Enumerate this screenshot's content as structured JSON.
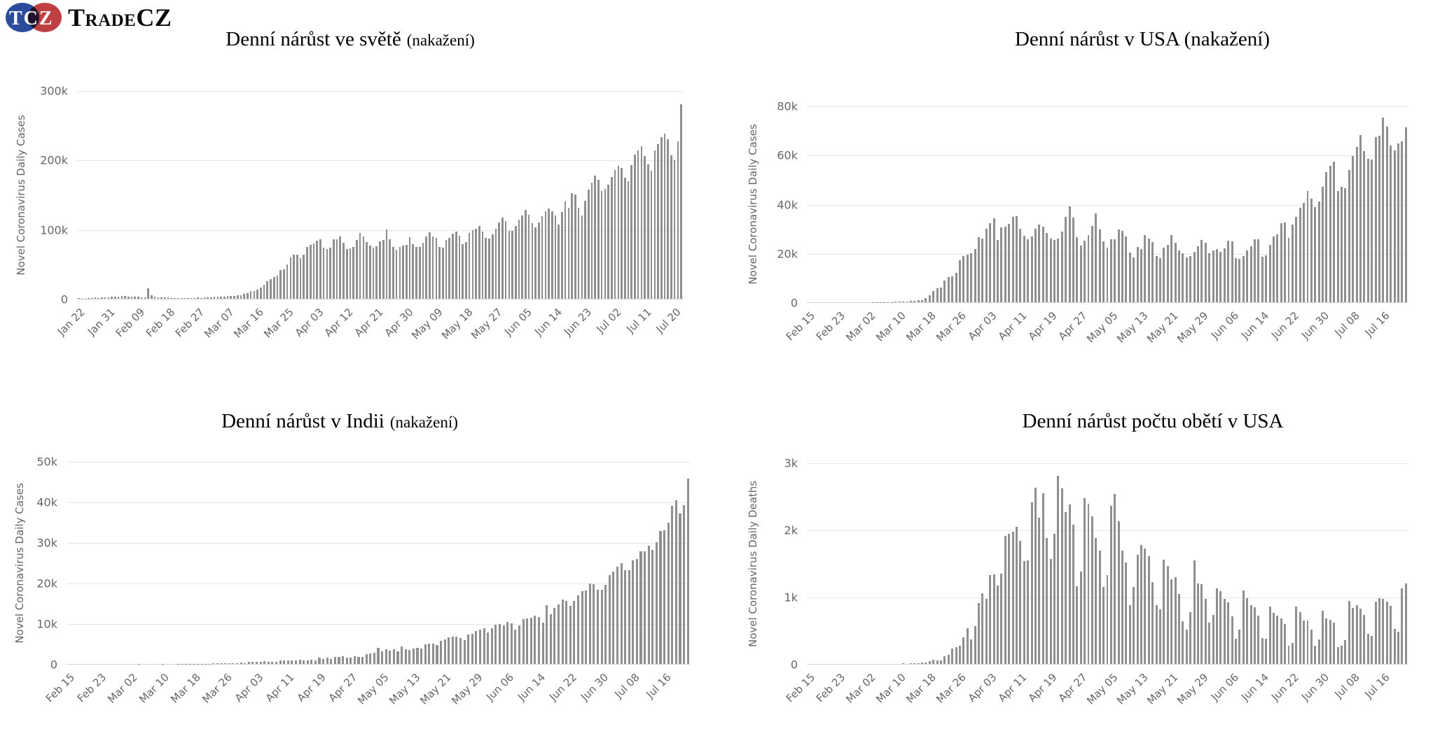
{
  "logo": {
    "badge": "TCZ",
    "name": "TradeCZ",
    "badge_blue": "#2b4b9b",
    "badge_red": "#bf4043"
  },
  "style": {
    "bar_color": "#8f8f8f",
    "grid_color": "#e6e6e6",
    "axis_line_color": "#ccd6eb",
    "tick_text_color": "#666666"
  },
  "chart_data": [
    {
      "name": "world-cases",
      "type": "bar",
      "title": "Denní nárůst ve světě",
      "suffix": "(nakažení)",
      "ylabel": "Novel Coronavirus Daily Cases",
      "unit": "thousands",
      "ymax": 300,
      "ylim": [
        0,
        300
      ],
      "grid": true,
      "yticks": [
        "0",
        "100k",
        "200k",
        "300k"
      ],
      "xtick_every": 9,
      "xticks": [
        "Jan 22",
        "Jan 31",
        "Feb 09",
        "Feb 18",
        "Feb 27",
        "Mar 07",
        "Mar 16",
        "Mar 25",
        "Apr 03",
        "Apr 12",
        "Apr 21",
        "Apr 30",
        "May 09",
        "May 18",
        "May 27",
        "Jun 05",
        "Jun 14",
        "Jun 23",
        "Jul 02",
        "Jul 11",
        "Jul 20"
      ],
      "values": [
        0.6,
        0.3,
        0.5,
        0.7,
        0.8,
        1.8,
        1.5,
        1.8,
        2.0,
        2.1,
        2.6,
        2.8,
        3.2,
        3.9,
        3.7,
        3.2,
        3.4,
        2.7,
        3.0,
        2.5,
        2.1,
        14.9,
        5.1,
        2.7,
        2.2,
        2.1,
        1.9,
        1.8,
        0.6,
        0.9,
        1.0,
        1.0,
        0.7,
        0.8,
        1.0,
        1.4,
        1.8,
        1.4,
        1.9,
        1.7,
        2.1,
        2.7,
        2.7,
        2.8,
        3.0,
        4.0,
        4.1,
        4.3,
        4.6,
        5.5,
        7.5,
        8.1,
        11.0,
        11.3,
        13.4,
        16.4,
        19.8,
        25.0,
        28.7,
        30.9,
        33.3,
        40.8,
        42.7,
        49.4,
        59.6,
        63.3,
        63.0,
        58.1,
        63.1,
        74.7,
        77.9,
        79.7,
        83.2,
        86.0,
        74.0,
        71.8,
        74.0,
        85.7,
        86.0,
        89.7,
        80.3,
        71.6,
        72.1,
        74.5,
        84.8,
        95.0,
        89.4,
        81.6,
        76.5,
        73.9,
        75.3,
        83.0,
        84.2,
        100.1,
        85.9,
        74.9,
        70.0,
        74.7,
        76.9,
        78.0,
        88.3,
        78.9,
        74.1,
        74.2,
        80.5,
        90.0,
        95.8,
        89.7,
        87.7,
        74.7,
        73.9,
        84.4,
        88.1,
        93.4,
        96.3,
        90.4,
        78.9,
        81.5,
        95.0,
        98.4,
        100.3,
        104.5,
        96.5,
        88.1,
        86.9,
        92.8,
        100.9,
        110.1,
        117.0,
        111.7,
        97.6,
        97.8,
        104.6,
        114.0,
        119.9,
        128.2,
        120.6,
        108.9,
        102.4,
        110.0,
        118.6,
        126.0,
        129.8,
        125.7,
        119.4,
        106.9,
        124.9,
        140.1,
        131.2,
        152.3,
        150.4,
        130.9,
        119.4,
        141.0,
        156.9,
        167.0,
        177.3,
        171.4,
        154.8,
        158.5,
        163.9,
        175.0,
        185.0,
        190.8,
        188.5,
        174.0,
        169.4,
        192.4,
        207.1,
        213.8,
        219.4,
        205.3,
        193.0,
        184.6,
        213.4,
        222.1,
        232.4,
        237.2,
        229.6,
        205.9,
        199.5,
        226.8,
        280.2
      ]
    },
    {
      "name": "usa-cases",
      "type": "bar",
      "title": "Denní nárůst v USA (nakažení)",
      "suffix": "",
      "ylabel": "Novel Coronavirus Daily Cases",
      "unit": "thousands",
      "ymax": 80,
      "ylim": [
        0,
        80
      ],
      "grid": true,
      "yticks": [
        "0",
        "20k",
        "40k",
        "60k",
        "80k"
      ],
      "xtick_every": 8,
      "xticks": [
        "Feb 15",
        "Feb 23",
        "Mar 02",
        "Mar 10",
        "Mar 18",
        "Mar 26",
        "Apr 03",
        "Apr 11",
        "Apr 19",
        "Apr 27",
        "May 05",
        "May 13",
        "May 21",
        "May 29",
        "Jun 06",
        "Jun 14",
        "Jun 22",
        "Jun 30",
        "Jul 08",
        "Jul 16"
      ],
      "values": [
        0,
        0,
        0,
        0,
        0,
        0,
        0,
        0,
        0,
        0.01,
        0.02,
        0.01,
        0.01,
        0.01,
        0.01,
        0.02,
        0.02,
        0.03,
        0.08,
        0.07,
        0.1,
        0.12,
        0.12,
        0.2,
        0.3,
        0.4,
        0.4,
        0.6,
        0.7,
        0.8,
        0.9,
        1.7,
        2.8,
        4.5,
        5.6,
        6.0,
        8.8,
        10.2,
        10.4,
        12.0,
        17.0,
        18.7,
        19.5,
        19.9,
        21.7,
        26.4,
        25.9,
        29.9,
        32.1,
        34.2,
        25.3,
        30.6,
        30.8,
        31.9,
        34.8,
        35.1,
        29.9,
        27.1,
        25.7,
        26.9,
        30.0,
        31.5,
        30.8,
        28.1,
        26.0,
        25.3,
        25.8,
        28.7,
        34.8,
        39.1,
        34.5,
        26.5,
        23.0,
        25.0,
        27.3,
        31.0,
        36.1,
        29.7,
        24.9,
        22.3,
        25.5,
        25.5,
        29.5,
        29.0,
        26.7,
        20.1,
        18.1,
        22.4,
        21.5,
        27.3,
        25.9,
        24.5,
        18.9,
        18.0,
        22.2,
        23.3,
        27.3,
        24.1,
        21.0,
        19.8,
        18.3,
        18.9,
        20.5,
        22.8,
        25.3,
        24.1,
        20.0,
        21.0,
        21.5,
        20.5,
        21.9,
        25.2,
        24.8,
        18.0,
        17.6,
        18.8,
        21.1,
        22.8,
        25.6,
        25.5,
        18.6,
        19.0,
        23.3,
        26.9,
        27.6,
        32.2,
        32.4,
        26.1,
        31.7,
        34.7,
        38.4,
        40.5,
        45.3,
        42.1,
        38.6,
        41.1,
        47.0,
        52.9,
        55.4,
        57.2,
        45.3,
        47.1,
        46.3,
        53.7,
        59.6,
        63.2,
        68.0,
        61.4,
        58.3,
        58.1,
        67.3,
        67.8,
        75.1,
        71.6,
        63.7,
        61.8,
        64.5,
        65.6,
        71.2
      ]
    },
    {
      "name": "india-cases",
      "type": "bar",
      "title": "Denní nárůst v Indii",
      "suffix": "(nakažení)",
      "ylabel": "Novel Coronavirus Daily Cases",
      "unit": "thousands",
      "ymax": 50,
      "ylim": [
        0,
        50
      ],
      "grid": true,
      "yticks": [
        "0",
        "10k",
        "20k",
        "30k",
        "40k",
        "50k"
      ],
      "xtick_every": 8,
      "xticks": [
        "Feb 15",
        "Feb 23",
        "Mar 02",
        "Mar 10",
        "Mar 18",
        "Mar 26",
        "Apr 03",
        "Apr 11",
        "Apr 19",
        "Apr 27",
        "May 05",
        "May 13",
        "May 21",
        "May 29",
        "Jun 06",
        "Jun 14",
        "Jun 22",
        "Jun 30",
        "Jul 08",
        "Jul 16"
      ],
      "values": [
        0,
        0,
        0,
        0,
        0,
        0,
        0,
        0,
        0,
        0,
        0,
        0,
        0,
        0,
        0,
        0,
        0,
        0.01,
        0.02,
        0.01,
        0.01,
        0.01,
        0.01,
        0.01,
        0.02,
        0.01,
        0.01,
        0.01,
        0.02,
        0.03,
        0.03,
        0.02,
        0.04,
        0.05,
        0.06,
        0.07,
        0.08,
        0.1,
        0.1,
        0.09,
        0.12,
        0.15,
        0.18,
        0.23,
        0.27,
        0.24,
        0.44,
        0.55,
        0.48,
        0.58,
        0.7,
        0.49,
        0.57,
        0.55,
        0.85,
        0.87,
        0.85,
        0.92,
        0.91,
        1.12,
        0.89,
        0.94,
        1.06,
        0.92,
        1.58,
        1.24,
        1.54,
        1.29,
        1.67,
        1.75,
        1.84,
        1.61,
        1.56,
        1.9,
        1.72,
        1.8,
        2.39,
        2.56,
        2.81,
        3.93,
        3.03,
        3.6,
        3.34,
        3.56,
        3.18,
        4.35,
        3.6,
        3.52,
        3.73,
        3.94,
        3.84,
        4.86,
        4.99,
        5.05,
        4.63,
        5.72,
        6.02,
        6.54,
        6.66,
        6.76,
        6.41,
        5.91,
        7.25,
        7.47,
        8.14,
        8.38,
        8.73,
        7.76,
        8.82,
        9.63,
        9.85,
        9.47,
        10.41,
        9.97,
        8.44,
        9.5,
        11.12,
        11.13,
        11.3,
        11.98,
        11.5,
        10.22,
        14.52,
        12.28,
        13.83,
        14.74,
        15.92,
        15.55,
        14.28,
        15.6,
        16.87,
        17.87,
        18.19,
        19.9,
        19.62,
        18.36,
        18.26,
        19.43,
        21.95,
        22.71,
        24.02,
        24.85,
        23.13,
        23.14,
        25.57,
        25.79,
        27.75,
        27.76,
        29.11,
        28.18,
        29.92,
        32.68,
        32.97,
        34.82,
        38.9,
        40.27,
        37.15,
        39.17,
        45.72
      ]
    },
    {
      "name": "usa-deaths",
      "type": "bar",
      "title": "Denní nárůst počtu obětí v USA",
      "suffix": "",
      "ylabel": "Novel Coronavirus Daily Deaths",
      "unit": "thousands",
      "ymax": 3,
      "ylim": [
        0,
        3
      ],
      "grid": true,
      "yticks": [
        "0",
        "1k",
        "2k",
        "3k"
      ],
      "xtick_every": 8,
      "xticks": [
        "Feb 15",
        "Feb 23",
        "Mar 02",
        "Mar 10",
        "Mar 18",
        "Mar 26",
        "Apr 03",
        "Apr 11",
        "Apr 19",
        "Apr 27",
        "May 05",
        "May 13",
        "May 21",
        "May 29",
        "Jun 06",
        "Jun 14",
        "Jun 22",
        "Jun 30",
        "Jul 08",
        "Jul 16"
      ],
      "values": [
        0,
        0,
        0,
        0,
        0,
        0,
        0,
        0,
        0,
        0,
        0,
        0,
        0,
        0,
        0,
        0,
        0,
        0,
        0,
        0,
        0,
        0,
        0,
        0,
        0,
        0.01,
        0,
        0.01,
        0.01,
        0.01,
        0.02,
        0.02,
        0.04,
        0.06,
        0.05,
        0.05,
        0.11,
        0.14,
        0.23,
        0.25,
        0.27,
        0.4,
        0.53,
        0.36,
        0.56,
        0.91,
        1.05,
        0.97,
        1.32,
        1.33,
        1.17,
        1.34,
        1.91,
        1.94,
        1.97,
        2.04,
        1.83,
        1.53,
        1.54,
        2.41,
        2.62,
        2.18,
        2.54,
        1.87,
        1.56,
        1.94,
        2.8,
        2.61,
        2.26,
        2.38,
        2.07,
        1.16,
        1.38,
        2.47,
        2.39,
        2.2,
        1.88,
        1.69,
        1.15,
        1.32,
        2.35,
        2.53,
        2.13,
        1.69,
        1.51,
        0.87,
        1.15,
        1.63,
        1.77,
        1.72,
        1.6,
        1.22,
        0.87,
        0.81,
        1.55,
        1.46,
        1.26,
        1.29,
        1.04,
        0.64,
        0.51,
        0.77,
        1.54,
        1.2,
        1.19,
        0.97,
        0.61,
        0.73,
        1.13,
        1.08,
        0.97,
        0.92,
        0.71,
        0.37,
        0.51,
        1.09,
        0.98,
        0.87,
        0.84,
        0.72,
        0.39,
        0.38,
        0.85,
        0.76,
        0.72,
        0.68,
        0.59,
        0.27,
        0.31,
        0.85,
        0.77,
        0.65,
        0.65,
        0.51,
        0.27,
        0.36,
        0.79,
        0.68,
        0.66,
        0.61,
        0.25,
        0.27,
        0.35,
        0.94,
        0.83,
        0.88,
        0.82,
        0.73,
        0.45,
        0.42,
        0.93,
        0.98,
        0.97,
        0.93,
        0.86,
        0.52,
        0.48,
        1.13,
        1.2
      ]
    }
  ]
}
